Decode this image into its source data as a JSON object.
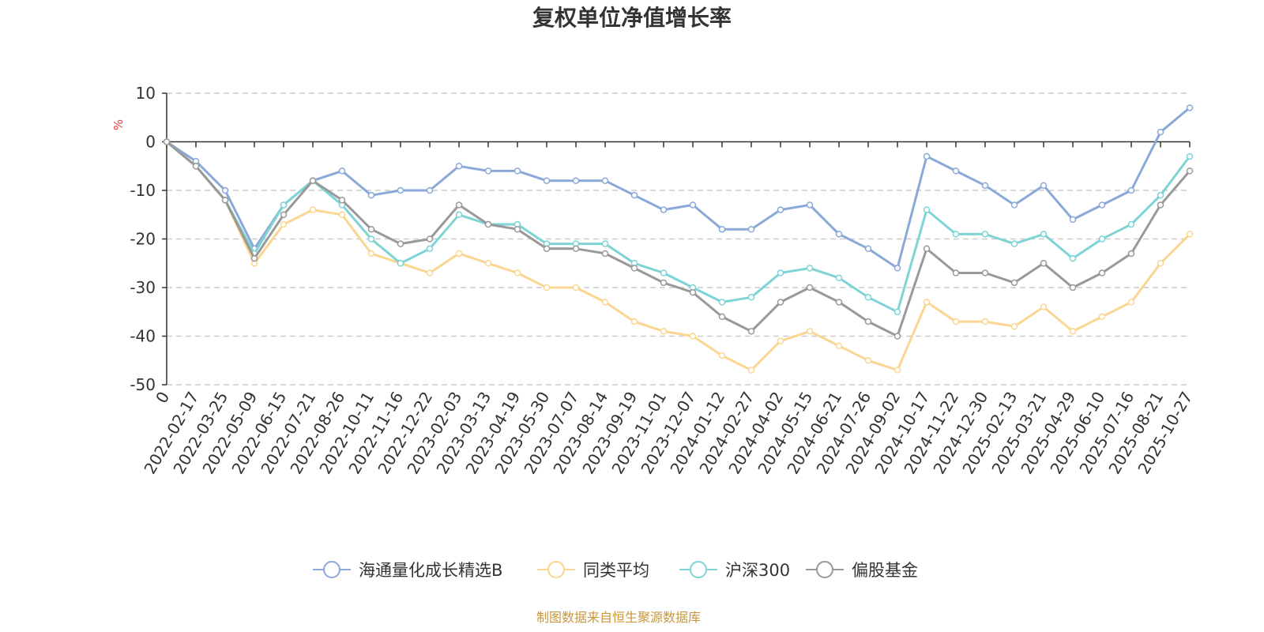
{
  "chart_data": {
    "type": "line",
    "title": "复权单位净值增长率",
    "ylabel": "%",
    "ylim": [
      -50,
      10
    ],
    "yticks": [
      10,
      0,
      -10,
      -20,
      -30,
      -40,
      -50
    ],
    "grid": true,
    "legend_position": "bottom-center",
    "categories": [
      "0",
      "2022-02-17",
      "2022-03-25",
      "2022-05-09",
      "2022-06-15",
      "2022-07-21",
      "2022-08-26",
      "2022-10-11",
      "2022-11-16",
      "2022-12-22",
      "2023-02-03",
      "2023-03-13",
      "2023-04-19",
      "2023-05-30",
      "2023-07-07",
      "2023-08-14",
      "2023-09-19",
      "2023-11-01",
      "2023-12-07",
      "2024-01-12",
      "2024-02-27",
      "2024-04-02",
      "2024-05-15",
      "2024-06-21",
      "2024-07-26",
      "2024-09-02",
      "2024-10-17",
      "2024-11-22",
      "2024-12-30",
      "2025-02-13",
      "2025-03-21",
      "2025-04-29",
      "2025-06-10",
      "2025-07-16",
      "2025-08-21",
      "2025-10-27"
    ],
    "series": [
      {
        "name": "海通量化成长精选B",
        "color": "#8aa9d8",
        "values": [
          0,
          -4,
          -10,
          -22,
          -13,
          -8,
          -6,
          -11,
          -10,
          -10,
          -5,
          -6,
          -6,
          -8,
          -8,
          -8,
          -11,
          -14,
          -13,
          -18,
          -18,
          -14,
          -13,
          -19,
          -22,
          -26,
          -3,
          -6,
          -9,
          -13,
          -9,
          -16,
          -13,
          -10,
          2,
          7
        ]
      },
      {
        "name": "同类平均",
        "color": "#fbd692",
        "values": [
          0,
          -5,
          -12,
          -25,
          -17,
          -14,
          -15,
          -23,
          -25,
          -27,
          -23,
          -25,
          -27,
          -30,
          -30,
          -33,
          -37,
          -39,
          -40,
          -44,
          -47,
          -41,
          -39,
          -42,
          -45,
          -47,
          -33,
          -37,
          -37,
          -38,
          -34,
          -39,
          -36,
          -33,
          -25,
          -19
        ]
      },
      {
        "name": "沪深300",
        "color": "#7ed3d5",
        "values": [
          0,
          -5,
          -12,
          -23,
          -13,
          -8,
          -13,
          -20,
          -25,
          -22,
          -15,
          -17,
          -17,
          -21,
          -21,
          -21,
          -25,
          -27,
          -30,
          -33,
          -32,
          -27,
          -26,
          -28,
          -32,
          -35,
          -14,
          -19,
          -19,
          -21,
          -19,
          -24,
          -20,
          -17,
          -11,
          -3
        ]
      },
      {
        "name": "偏股基金",
        "color": "#999999",
        "values": [
          0,
          -5,
          -12,
          -24,
          -15,
          -8,
          -12,
          -18,
          -21,
          -20,
          -13,
          -17,
          -18,
          -22,
          -22,
          -23,
          -26,
          -29,
          -31,
          -36,
          -39,
          -33,
          -30,
          -33,
          -37,
          -40,
          -22,
          -27,
          -27,
          -29,
          -25,
          -30,
          -27,
          -23,
          -13,
          -6
        ]
      }
    ]
  },
  "source_note": "制图数据来自恒生聚源数据库",
  "colors": {
    "axis": "#333333",
    "grid": "#cccccc",
    "ylabel": "#e63c3c",
    "source": "#c8963c"
  }
}
